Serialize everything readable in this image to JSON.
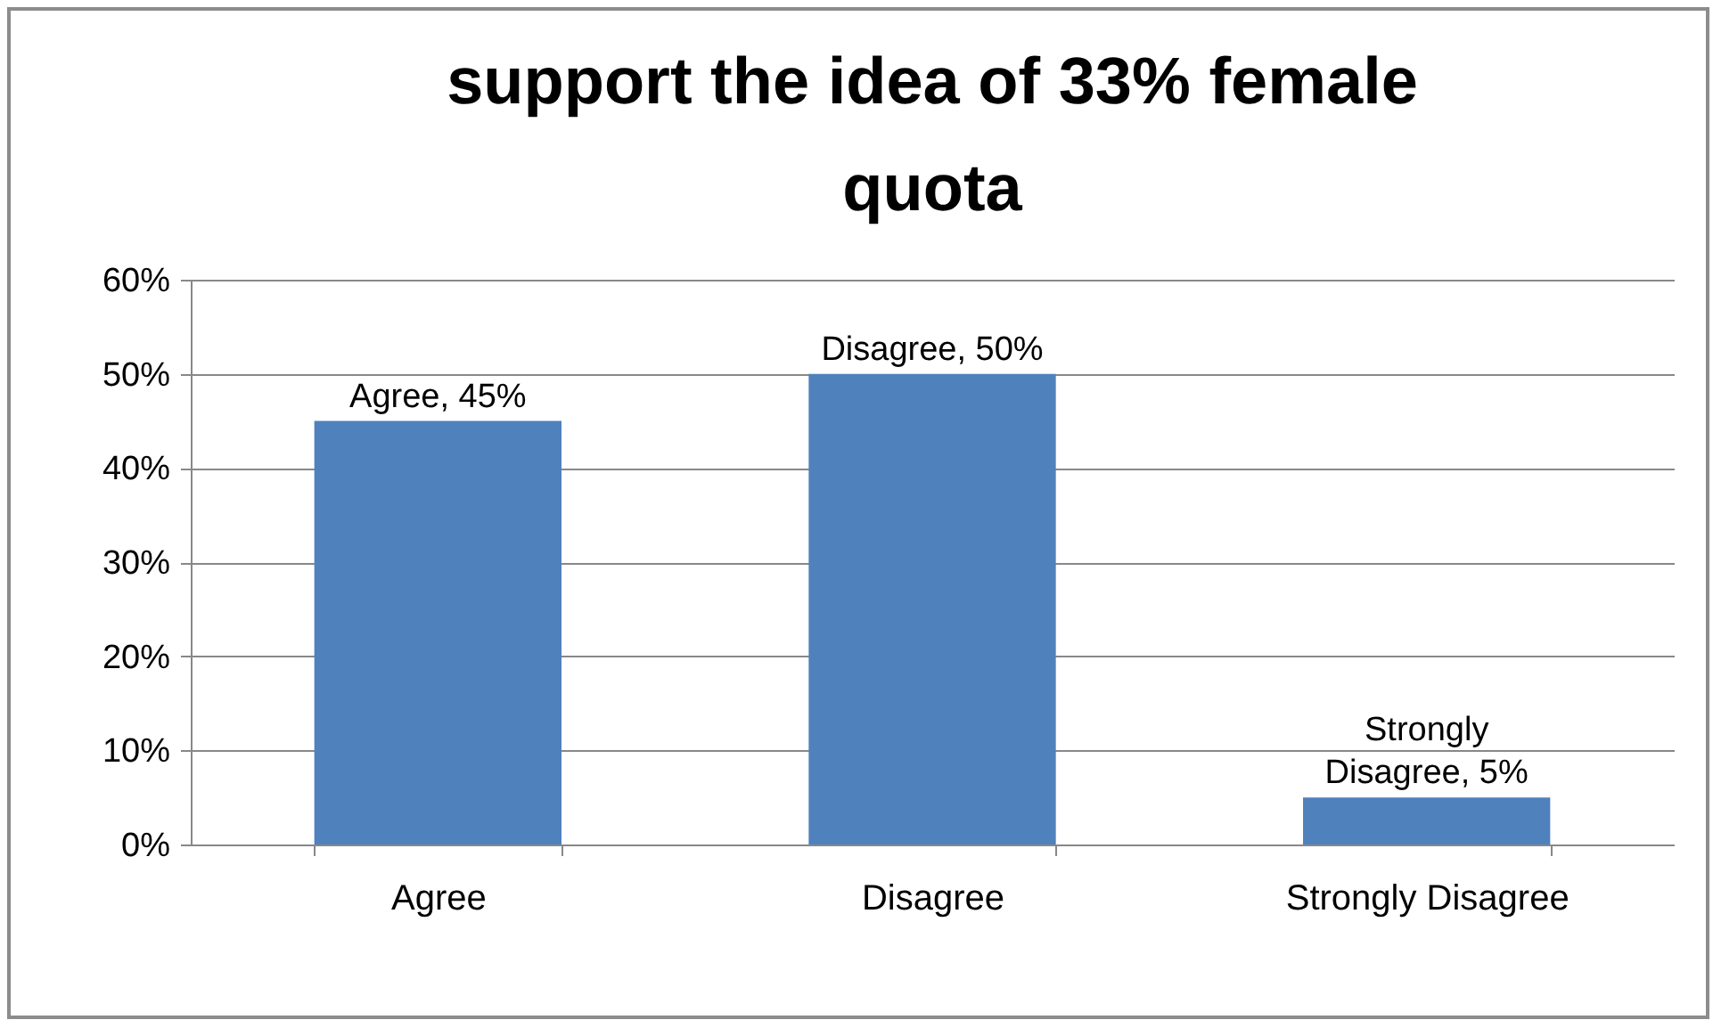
{
  "chart_data": {
    "type": "bar",
    "title": "support the idea of 33% female quota",
    "categories": [
      "Agree",
      "Disagree",
      "Strongly Disagree"
    ],
    "values": [
      45,
      50,
      5
    ],
    "color": "#4f81bd",
    "value_labels": [
      "Agree, 45%",
      "Disagree, 50%",
      "Strongly Disagree, 5%"
    ],
    "ylim": [
      0,
      60
    ],
    "yticks": [
      {
        "value": 0,
        "label": "0%"
      },
      {
        "value": 10,
        "label": "10%"
      },
      {
        "value": 20,
        "label": "20%"
      },
      {
        "value": 30,
        "label": "30%"
      },
      {
        "value": 40,
        "label": "40%"
      },
      {
        "value": 50,
        "label": "50%"
      },
      {
        "value": 60,
        "label": "60%"
      }
    ],
    "grid": "y"
  }
}
